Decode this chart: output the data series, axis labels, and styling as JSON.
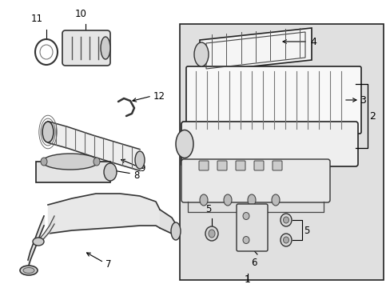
{
  "bg_color": "#ffffff",
  "panel_color": "#e8e8e8",
  "line_color": "#000000",
  "fig_width": 4.89,
  "fig_height": 3.6,
  "dpi": 100
}
